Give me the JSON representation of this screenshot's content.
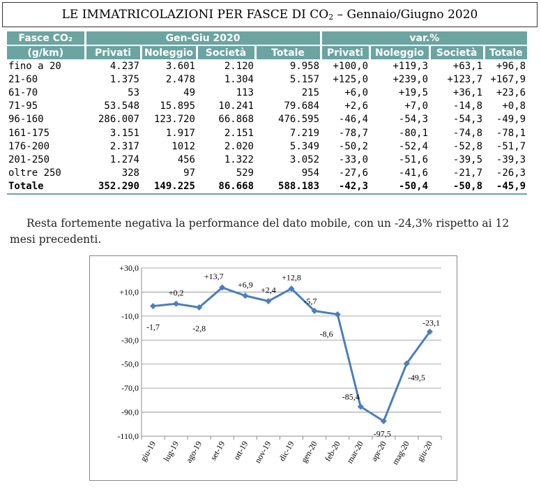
{
  "title": {
    "main": "LE IMMATRICOLAZIONI PER FASCE DI CO",
    "sub": "2",
    "rest": " – Gennaio/Giugno 2020"
  },
  "table": {
    "col0_header_line1": "Fasce CO₂",
    "col0_header_line2": "(g/km)",
    "group1": "Gen-Giu 2020",
    "group2": "var.%",
    "sub_headers": [
      "Privati",
      "Noleggio",
      "Società",
      "Totale",
      "Privati",
      "Noleggio",
      "Società",
      "Totale"
    ],
    "rows": [
      [
        "fino a 20",
        "4.237",
        "3.601",
        "2.120",
        "9.958",
        "+100,0",
        "+119,3",
        "+63,1",
        "+96,8"
      ],
      [
        "21-60",
        "1.375",
        "2.478",
        "1.304",
        "5.157",
        "+125,0",
        "+239,0",
        "+123,7",
        "+167,9"
      ],
      [
        "61-70",
        "53",
        "49",
        "113",
        "215",
        "+6,0",
        "+19,5",
        "+36,1",
        "+23,6"
      ],
      [
        "71-95",
        "53.548",
        "15.895",
        "10.241",
        "79.684",
        "+2,6",
        "+7,0",
        "-14,8",
        "+0,8"
      ],
      [
        "96-160",
        "286.007",
        "123.720",
        "66.868",
        "476.595",
        "-46,4",
        "-54,3",
        "-54,3",
        "-49,9"
      ],
      [
        "161-175",
        "3.151",
        "1.917",
        "2.151",
        "7.219",
        "-78,7",
        "-80,1",
        "-74,8",
        "-78,1"
      ],
      [
        "176-200",
        "2.317",
        "1012",
        "2.020",
        "5.349",
        "-50,2",
        "-52,4",
        "-52,8",
        "-51,7"
      ],
      [
        "201-250",
        "1.274",
        "456",
        "1.322",
        "3.052",
        "-33,0",
        "-51,6",
        "-39,5",
        "-39,3"
      ],
      [
        "oltre 250",
        "328",
        "97",
        "529",
        "954",
        "-27,6",
        "-41,6",
        "-21,7",
        "-26,3"
      ]
    ],
    "total": [
      "Totale",
      "352.290",
      "149.225",
      "86.668",
      "588.183",
      "-42,3",
      "-50,4",
      "-50,8",
      "-45,9"
    ]
  },
  "paragraph": "Resta fortemente negativa la performance del dato mobile, con un -24,3% rispetto ai 12 mesi precedenti.",
  "chart_data": {
    "type": "line",
    "categories": [
      "giu-19",
      "lug-19",
      "ago-19",
      "set-19",
      "ott-19",
      "nov-19",
      "dic-19",
      "gen-20",
      "feb-20",
      "mar-20",
      "apr-20",
      "mag-20",
      "giu-20"
    ],
    "values": [
      -1.7,
      0.2,
      -2.8,
      13.7,
      6.9,
      2.4,
      12.8,
      -5.7,
      -8.6,
      -85.4,
      -97.5,
      -49.5,
      -23.1
    ],
    "data_labels": [
      "-1,7",
      "+0,2",
      "-2,8",
      "+13,7",
      "+6,9",
      "+2,4",
      "+12,8",
      "-5,7",
      "-8,6",
      "-85,4",
      "-97,5",
      "-49,5",
      "-23,1"
    ],
    "y_ticks": [
      30,
      10,
      -10,
      -30,
      -50,
      -70,
      -90,
      -110
    ],
    "y_tick_labels": [
      "+30,0",
      "+10,0",
      "-10,0",
      "-30,0",
      "-50,0",
      "-70,0",
      "-90,0",
      "-110,0"
    ],
    "ylim": [
      -110,
      30
    ],
    "grid": true,
    "series_color": "#4a7ebb",
    "title": "",
    "xlabel": "",
    "ylabel": ""
  }
}
